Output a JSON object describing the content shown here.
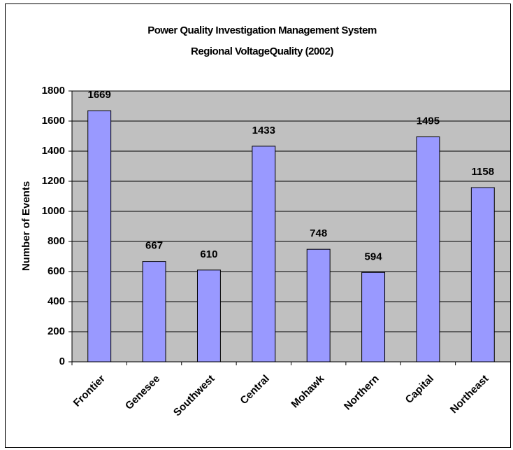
{
  "chart_data": {
    "type": "bar",
    "title": "Power Quality Investigation Management System",
    "subtitle": "Regional VoltageQuality (2002)",
    "y_label": "Number of Events",
    "categories": [
      "Frontier",
      "Genesee",
      "Southwest",
      "Central",
      "Mohawk",
      "Northern",
      "Capital",
      "Northeast"
    ],
    "values": [
      1669,
      667,
      610,
      1433,
      748,
      594,
      1495,
      1158
    ],
    "color": "#9999ff",
    "plot_background": "#c0c0c0",
    "ylim": [
      0,
      1800
    ],
    "yticks": [
      0,
      200,
      400,
      600,
      800,
      1000,
      1200,
      1400,
      1600,
      1800
    ],
    "grid": true
  }
}
